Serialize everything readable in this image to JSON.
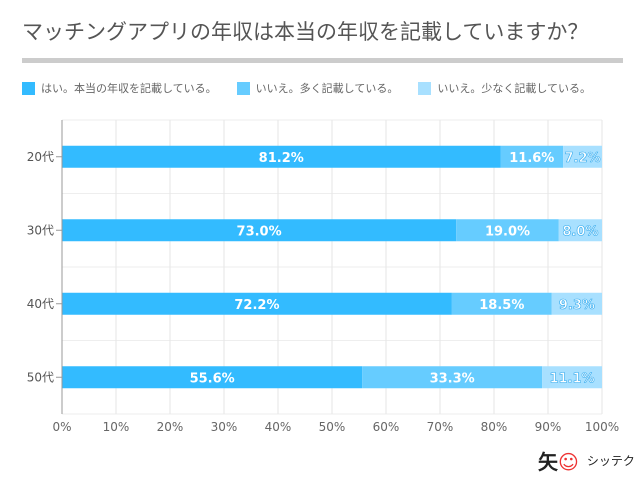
{
  "chart_data": {
    "type": "bar",
    "stacked": true,
    "orientation": "horizontal",
    "title": "マッチングアプリの年収は本当の年収を記載していますか？",
    "categories": [
      "20代",
      "30代",
      "40代",
      "50代"
    ],
    "series": [
      {
        "name": "はい。本当の年収を記載している。",
        "color": "#33bbff",
        "values": [
          81.2,
          73.0,
          72.2,
          55.6
        ]
      },
      {
        "name": "いいえ。多く記載している。",
        "color": "#66ccff",
        "values": [
          11.6,
          19.0,
          18.5,
          33.3
        ]
      },
      {
        "name": "いいえ。少なく記載している。",
        "color": "#a8e0ff",
        "values": [
          7.2,
          8.0,
          9.3,
          11.1
        ]
      }
    ],
    "xlim": [
      0,
      100
    ],
    "xticks": [
      "0%",
      "10%",
      "20%",
      "30%",
      "40%",
      "50%",
      "60%",
      "70%",
      "80%",
      "90%",
      "100%"
    ],
    "grid": true,
    "legend": "top"
  },
  "logo": {
    "text": "シッテク"
  }
}
